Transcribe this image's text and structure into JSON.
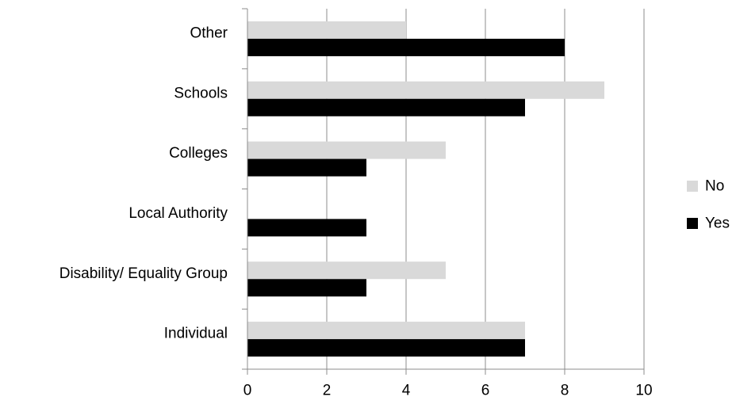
{
  "chart_data": {
    "type": "bar",
    "orientation": "horizontal",
    "categories": [
      "Other",
      "Schools",
      "Colleges",
      "Local Authority",
      "Disability/ Equality Group",
      "Individual"
    ],
    "series": [
      {
        "name": "No",
        "color": "#d9d9d9",
        "values": [
          4,
          9,
          5,
          0,
          5,
          7
        ]
      },
      {
        "name": "Yes",
        "color": "#000000",
        "values": [
          8,
          7,
          3,
          3,
          3,
          7
        ]
      }
    ],
    "xlim": [
      0,
      10
    ],
    "x_ticks": [
      0,
      2,
      4,
      6,
      8,
      10
    ],
    "grid": true,
    "legend_position": "right"
  }
}
